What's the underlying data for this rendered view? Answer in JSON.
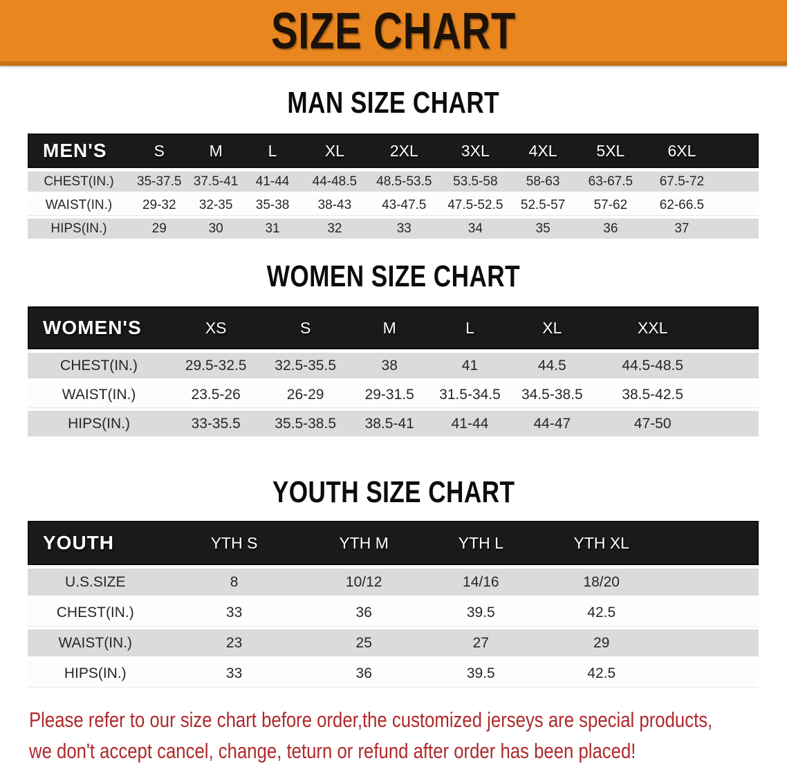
{
  "banner": {
    "title": "SIZE CHART"
  },
  "sections": [
    {
      "heading": "MAN SIZE CHART",
      "table": {
        "header_label": "MEN'S",
        "columns": [
          "S",
          "M",
          "L",
          "XL",
          "2XL",
          "3XL",
          "4XL",
          "5XL",
          "6XL"
        ],
        "rows": [
          {
            "label": "CHEST(IN.)",
            "values": [
              "35-37.5",
              "37.5-41",
              "41-44",
              "44-48.5",
              "48.5-53.5",
              "53.5-58",
              "58-63",
              "63-67.5",
              "67.5-72"
            ]
          },
          {
            "label": "WAIST(IN.)",
            "values": [
              "29-32",
              "32-35",
              "35-38",
              "38-43",
              "43-47.5",
              "47.5-52.5",
              "52.5-57",
              "57-62",
              "62-66.5"
            ]
          },
          {
            "label": "HIPS(IN.)",
            "values": [
              "29",
              "30",
              "31",
              "32",
              "33",
              "34",
              "35",
              "36",
              "37"
            ]
          }
        ]
      }
    },
    {
      "heading": "WOMEN SIZE CHART",
      "table": {
        "header_label": "WOMEN'S",
        "columns": [
          "XS",
          "S",
          "M",
          "L",
          "XL",
          "XXL"
        ],
        "rows": [
          {
            "label": "CHEST(IN.)",
            "values": [
              "29.5-32.5",
              "32.5-35.5",
              "38",
              "41",
              "44.5",
              "44.5-48.5"
            ]
          },
          {
            "label": "WAIST(IN.)",
            "values": [
              "23.5-26",
              "26-29",
              "29-31.5",
              "31.5-34.5",
              "34.5-38.5",
              "38.5-42.5"
            ]
          },
          {
            "label": "HIPS(IN.)",
            "values": [
              "33-35.5",
              "35.5-38.5",
              "38.5-41",
              "41-44",
              "44-47",
              "47-50"
            ]
          }
        ]
      }
    },
    {
      "heading": "YOUTH SIZE CHART",
      "table": {
        "header_label": "YOUTH",
        "columns": [
          "YTH S",
          "YTH M",
          "YTH L",
          "YTH XL"
        ],
        "rows": [
          {
            "label": "U.S.SIZE",
            "values": [
              "8",
              "10/12",
              "14/16",
              "18/20"
            ]
          },
          {
            "label": "CHEST(IN.)",
            "values": [
              "33",
              "36",
              "39.5",
              "42.5"
            ]
          },
          {
            "label": "WAIST(IN.)",
            "values": [
              "23",
              "25",
              "27",
              "29"
            ]
          },
          {
            "label": "HIPS(IN.)",
            "values": [
              "33",
              "36",
              "39.5",
              "42.5"
            ]
          }
        ]
      }
    }
  ],
  "footer": {
    "line1": "Please refer to our size chart before order,the customized jerseys are special products,",
    "line2": "we don't accept cancel, change, teturn or refund after order has been placed!"
  },
  "colors": {
    "banner_bg": "#EA861F",
    "banner_edge": "#C86F12",
    "bar_bg": "#1A1A1A",
    "row_gray": "#DBDBDB",
    "footer_red": "#B0292B"
  }
}
